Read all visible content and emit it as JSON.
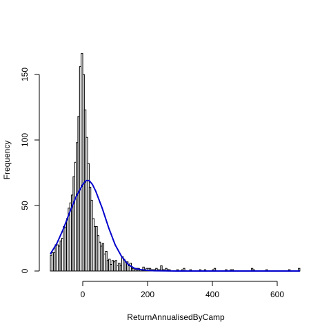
{
  "chart_data": {
    "type": "bar",
    "title": "",
    "xlabel": "ReturnAnnualisedByCamp",
    "ylabel": "Frequency",
    "xlim": [
      -100,
      670
    ],
    "ylim": [
      0,
      170
    ],
    "xticks": [
      0,
      200,
      400,
      600
    ],
    "yticks": [
      0,
      50,
      100,
      150
    ],
    "grid": false,
    "legend": "none",
    "bin_width": 5,
    "bins_start": [
      -100,
      -95,
      -90,
      -85,
      -80,
      -75,
      -70,
      -65,
      -60,
      -55,
      -50,
      -45,
      -40,
      -35,
      -30,
      -25,
      -20,
      -15,
      -10,
      -5,
      0,
      5,
      10,
      15,
      20,
      25,
      30,
      35,
      40,
      45,
      50,
      55,
      60,
      65,
      70,
      75,
      80,
      85,
      90,
      95,
      100,
      105,
      110,
      115,
      120,
      125,
      130,
      135,
      140,
      145,
      150,
      155,
      160,
      165,
      170,
      175,
      180,
      185,
      190,
      195,
      200,
      205,
      210,
      215,
      220,
      225,
      230,
      235,
      240,
      245,
      250,
      255,
      260,
      265,
      290,
      305,
      310,
      330,
      360,
      375,
      400,
      405,
      440,
      455,
      460,
      520,
      525,
      565,
      635,
      665
    ],
    "counts": [
      12,
      14,
      14,
      20,
      20,
      19,
      23,
      25,
      34,
      33,
      40,
      48,
      52,
      58,
      72,
      83,
      98,
      118,
      156,
      166,
      150,
      123,
      102,
      82,
      64,
      54,
      40,
      34,
      34,
      27,
      22,
      19,
      21,
      13,
      15,
      8,
      9,
      5,
      8,
      7,
      8,
      4,
      6,
      4,
      11,
      9,
      7,
      7,
      4,
      6,
      2,
      2,
      1,
      2,
      2,
      1,
      1,
      3,
      1,
      2,
      2,
      2,
      1,
      1,
      1,
      2,
      1,
      1,
      4,
      1,
      1,
      2,
      1,
      1,
      1,
      1,
      2,
      1,
      1,
      1,
      1,
      2,
      1,
      1,
      1,
      2,
      1,
      1,
      1,
      2
    ],
    "density_curve": {
      "color": "#0000cc",
      "x": [
        -100,
        -80,
        -60,
        -40,
        -20,
        0,
        10,
        20,
        30,
        40,
        60,
        80,
        100,
        120,
        140,
        160,
        180,
        200,
        220,
        250,
        300,
        400,
        500,
        600,
        670
      ],
      "y": [
        13,
        21,
        32,
        45,
        57,
        66,
        69,
        69,
        66,
        61,
        48,
        33,
        20,
        11,
        5,
        2,
        1,
        0.5,
        0.2,
        0.1,
        0,
        0,
        0,
        0,
        0
      ]
    }
  }
}
